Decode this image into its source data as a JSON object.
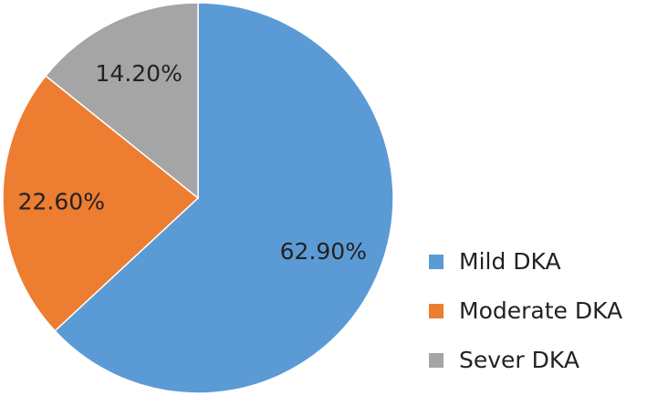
{
  "chart_data": {
    "type": "pie",
    "categories": [
      "Mild DKA",
      "Moderate DKA",
      "Sever DKA"
    ],
    "values": [
      62.9,
      22.6,
      14.2
    ],
    "value_labels": [
      "62.90%",
      "22.60%",
      "14.20%"
    ],
    "colors": [
      "#5b9bd5",
      "#ed7d31",
      "#a5a5a5"
    ],
    "legend": "right"
  }
}
